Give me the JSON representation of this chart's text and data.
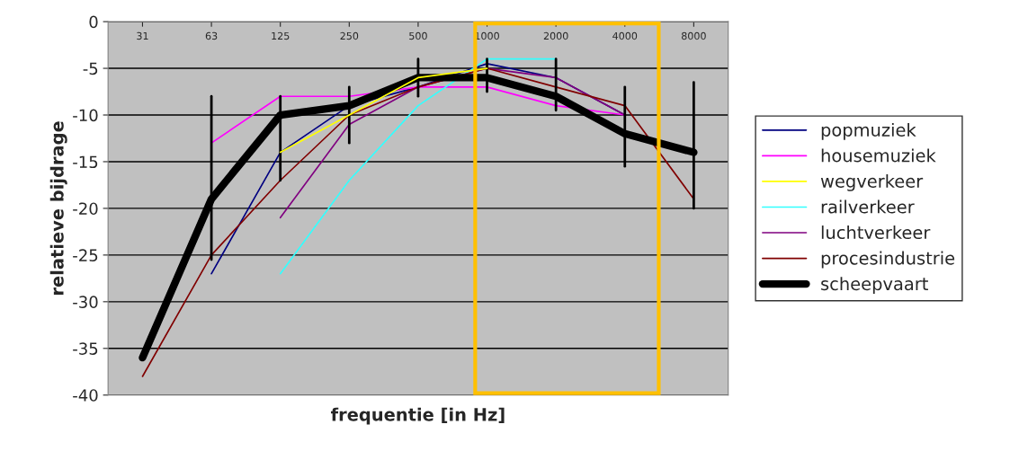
{
  "chart_data": {
    "type": "line",
    "xlabel": "frequentie [in Hz]",
    "ylabel": "relatieve bijdrage",
    "categories": [
      "31",
      "63",
      "125",
      "250",
      "500",
      "1000",
      "2000",
      "4000",
      "8000"
    ],
    "series": [
      {
        "name": "popmuziek",
        "color": "#000080",
        "values": [
          null,
          -27,
          -14,
          -9,
          -7,
          -4.5,
          -6,
          -10,
          null
        ]
      },
      {
        "name": "housemuziek",
        "color": "#ff00ff",
        "values": [
          null,
          -13,
          -8,
          -8,
          -7,
          -7,
          -9,
          -10,
          null
        ]
      },
      {
        "name": "wegverkeer",
        "color": "#ffff00",
        "values": [
          null,
          null,
          -14,
          -10,
          -6,
          -5,
          null,
          null,
          null
        ]
      },
      {
        "name": "railverkeer",
        "color": "#33ffff",
        "values": [
          null,
          null,
          -27,
          -17,
          -9,
          -4,
          -4,
          null,
          null
        ]
      },
      {
        "name": "luchtverkeer",
        "color": "#800080",
        "values": [
          null,
          null,
          -21,
          -11,
          -7,
          -5,
          -6,
          -10,
          null
        ]
      },
      {
        "name": "procesindustrie",
        "color": "#800000",
        "values": [
          -38,
          -25,
          -17,
          -10,
          -7,
          -5,
          -7,
          -9,
          -19
        ]
      },
      {
        "name": "scheepvaart",
        "color": "#000000",
        "values": [
          -36,
          -19,
          -10,
          -9,
          -6,
          -6,
          -8,
          -12,
          -14
        ],
        "errors": [
          null,
          [
            -25.5,
            -8
          ],
          [
            -17,
            -8
          ],
          [
            -13,
            -7
          ],
          [
            -8,
            -4
          ],
          [
            -7.5,
            -4
          ],
          [
            -9.5,
            -4
          ],
          [
            -15.5,
            -7
          ],
          [
            -20,
            -6.5
          ]
        ]
      }
    ],
    "ylim": [
      -40,
      0
    ],
    "yticks": [
      0,
      -5,
      -10,
      -15,
      -20,
      -25,
      -30,
      -35,
      -40
    ],
    "grid": "y",
    "legend": "right",
    "marker": "none",
    "line_style": "solid"
  }
}
